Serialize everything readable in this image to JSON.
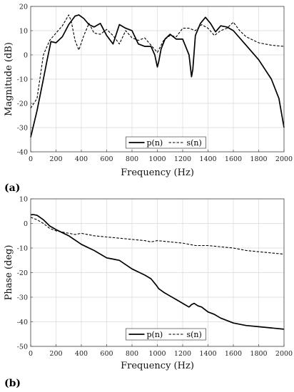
{
  "chart_data": [
    {
      "type": "line",
      "panel_label": "(a)",
      "xlabel": "Frequency (Hz)",
      "ylabel": "Magnitude (dB)",
      "xlim": [
        0,
        2000
      ],
      "ylim": [
        -40,
        20
      ],
      "xticks": [
        0,
        200,
        400,
        600,
        800,
        1000,
        1200,
        1400,
        1600,
        1800,
        2000
      ],
      "yticks": [
        -40,
        -30,
        -20,
        -10,
        0,
        10,
        20
      ],
      "grid": true,
      "legend_placement": "bottom-center",
      "series": [
        {
          "name": "p(n)",
          "style": "solid",
          "color": "#000000",
          "x": [
            0,
            50,
            100,
            130,
            160,
            200,
            250,
            300,
            350,
            380,
            420,
            460,
            500,
            550,
            600,
            650,
            700,
            750,
            800,
            850,
            900,
            950,
            980,
            1000,
            1010,
            1030,
            1060,
            1100,
            1150,
            1200,
            1250,
            1270,
            1280,
            1300,
            1340,
            1380,
            1420,
            1460,
            1500,
            1550,
            1600,
            1700,
            1800,
            1900,
            1960,
            2000
          ],
          "y": [
            -34,
            -23,
            -10,
            -2,
            5.5,
            5,
            7.5,
            12.5,
            16,
            16.5,
            15,
            12.5,
            11.5,
            13,
            8,
            4.5,
            12.5,
            11,
            10,
            4.5,
            3.5,
            3.5,
            0,
            -5,
            -3,
            2.5,
            6.5,
            8.5,
            6.5,
            6.5,
            0,
            -9,
            -6,
            8,
            13,
            15.5,
            13,
            9.5,
            12,
            11.5,
            10,
            4,
            -2,
            -10,
            -18,
            -30
          ]
        },
        {
          "name": "s(n)",
          "style": "dashed",
          "color": "#000000",
          "x": [
            0,
            50,
            100,
            150,
            200,
            250,
            300,
            320,
            350,
            380,
            420,
            460,
            500,
            550,
            600,
            650,
            700,
            750,
            800,
            850,
            900,
            950,
            1000,
            1050,
            1100,
            1150,
            1200,
            1250,
            1300,
            1350,
            1400,
            1450,
            1500,
            1550,
            1600,
            1650,
            1700,
            1800,
            1900,
            2000
          ],
          "y": [
            -22,
            -18,
            0,
            6,
            9,
            12,
            16.5,
            14,
            6,
            2,
            8,
            13,
            9,
            8.5,
            10.5,
            8,
            4.5,
            10,
            7,
            6,
            7,
            4,
            1,
            6,
            8,
            7.5,
            11,
            11,
            10,
            12.5,
            11,
            8,
            10,
            11,
            13.5,
            10,
            7.5,
            5,
            4,
            3.5
          ]
        }
      ]
    },
    {
      "type": "line",
      "panel_label": "(b)",
      "xlabel": "Frequency (Hz)",
      "ylabel": "Phase (deg)",
      "xlim": [
        0,
        2000
      ],
      "ylim": [
        -50,
        10
      ],
      "xticks": [
        0,
        200,
        400,
        600,
        800,
        1000,
        1200,
        1400,
        1600,
        1800,
        2000
      ],
      "yticks": [
        -50,
        -40,
        -30,
        -20,
        -10,
        0,
        10
      ],
      "grid": true,
      "legend_placement": "bottom-center",
      "series": [
        {
          "name": "p(n)",
          "style": "solid",
          "color": "#000000",
          "x": [
            0,
            20,
            50,
            100,
            150,
            200,
            300,
            400,
            500,
            600,
            650,
            700,
            800,
            900,
            950,
            990,
            1010,
            1050,
            1100,
            1150,
            1200,
            1250,
            1270,
            1290,
            1320,
            1350,
            1400,
            1450,
            1500,
            1600,
            1700,
            1800,
            1900,
            2000
          ],
          "y": [
            3.5,
            3.6,
            3.3,
            1.5,
            -1,
            -2.5,
            -5,
            -8.5,
            -11,
            -14,
            -14.5,
            -15,
            -18.5,
            -21,
            -22.5,
            -25,
            -26.5,
            -28,
            -29.5,
            -31,
            -32.5,
            -34,
            -33,
            -32.5,
            -33.5,
            -34,
            -36,
            -37,
            -38.5,
            -40.5,
            -41.5,
            -42,
            -42.5,
            -43
          ]
        },
        {
          "name": "s(n)",
          "style": "dashed",
          "color": "#000000",
          "x": [
            0,
            50,
            100,
            150,
            200,
            300,
            350,
            400,
            500,
            600,
            700,
            800,
            900,
            950,
            1000,
            1100,
            1200,
            1300,
            1400,
            1500,
            1600,
            1700,
            1800,
            1900,
            2000
          ],
          "y": [
            2.5,
            1.5,
            0,
            -2,
            -3,
            -4,
            -4.5,
            -4,
            -5,
            -5.5,
            -6,
            -6.5,
            -7,
            -7.5,
            -7,
            -7.5,
            -8,
            -9,
            -9,
            -9.5,
            -10,
            -11,
            -11.5,
            -12,
            -12.5
          ]
        }
      ]
    }
  ]
}
